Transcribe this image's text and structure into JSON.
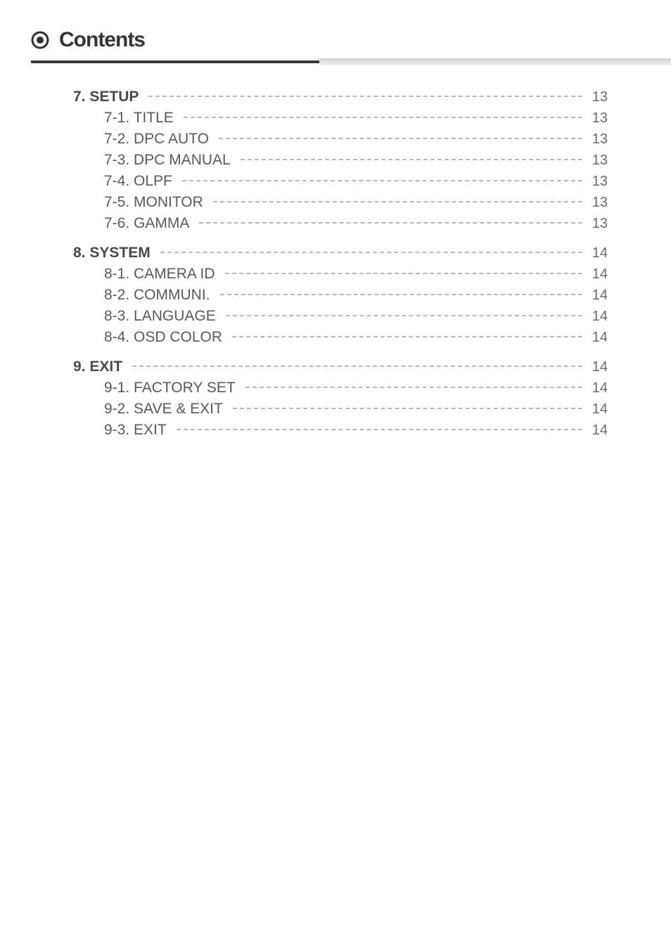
{
  "header": {
    "title": "Contents",
    "title_color": "#343436",
    "title_fontsize": 30,
    "bullet": {
      "outer_color": "#2f2f31",
      "inner_color": "#2f2f31",
      "outer_radius": 12,
      "ring_thickness": 3,
      "inner_radius": 5
    },
    "underline": {
      "black_color": "#3b3b3d",
      "gradient_from": "#cfcfd1",
      "gradient_to": "#f2f2f3"
    }
  },
  "typography": {
    "body_color": "#59595b",
    "page_color": "#6a6a6c",
    "leader_color": "#b8b8ba",
    "label_fontsize": 21,
    "page_fontsize": 20
  },
  "toc": [
    {
      "label": "7. SETUP",
      "page": "13",
      "bold": true,
      "indent": 0,
      "section": true
    },
    {
      "label": "7-1. TITLE",
      "page": "13",
      "bold": false,
      "indent": 1
    },
    {
      "label": "7-2. DPC AUTO",
      "page": "13",
      "bold": false,
      "indent": 1
    },
    {
      "label": "7-3. DPC MANUAL",
      "page": "13",
      "bold": false,
      "indent": 1
    },
    {
      "label": "7-4. OLPF",
      "page": "13",
      "bold": false,
      "indent": 1
    },
    {
      "label": "7-5. MONITOR",
      "page": "13",
      "bold": false,
      "indent": 1
    },
    {
      "label": "7-6. GAMMA",
      "page": "13",
      "bold": false,
      "indent": 1
    },
    {
      "label": "8. SYSTEM",
      "page": "14",
      "bold": true,
      "indent": 0,
      "section": true
    },
    {
      "label": "8-1. CAMERA ID",
      "page": "14",
      "bold": false,
      "indent": 1
    },
    {
      "label": "8-2. COMMUNI.",
      "page": "14",
      "bold": false,
      "indent": 1
    },
    {
      "label": "8-3. LANGUAGE",
      "page": "14",
      "bold": false,
      "indent": 1
    },
    {
      "label": "8-4. OSD COLOR",
      "page": "14",
      "bold": false,
      "indent": 1
    },
    {
      "label": "9. EXIT",
      "page": "14",
      "bold": true,
      "indent": 0,
      "section": true
    },
    {
      "label": "9-1. FACTORY SET",
      "page": "14",
      "bold": false,
      "indent": 1
    },
    {
      "label": "9-2. SAVE & EXIT",
      "page": "14",
      "bold": false,
      "indent": 1
    },
    {
      "label": "9-3. EXIT",
      "page": "14",
      "bold": false,
      "indent": 1
    }
  ]
}
